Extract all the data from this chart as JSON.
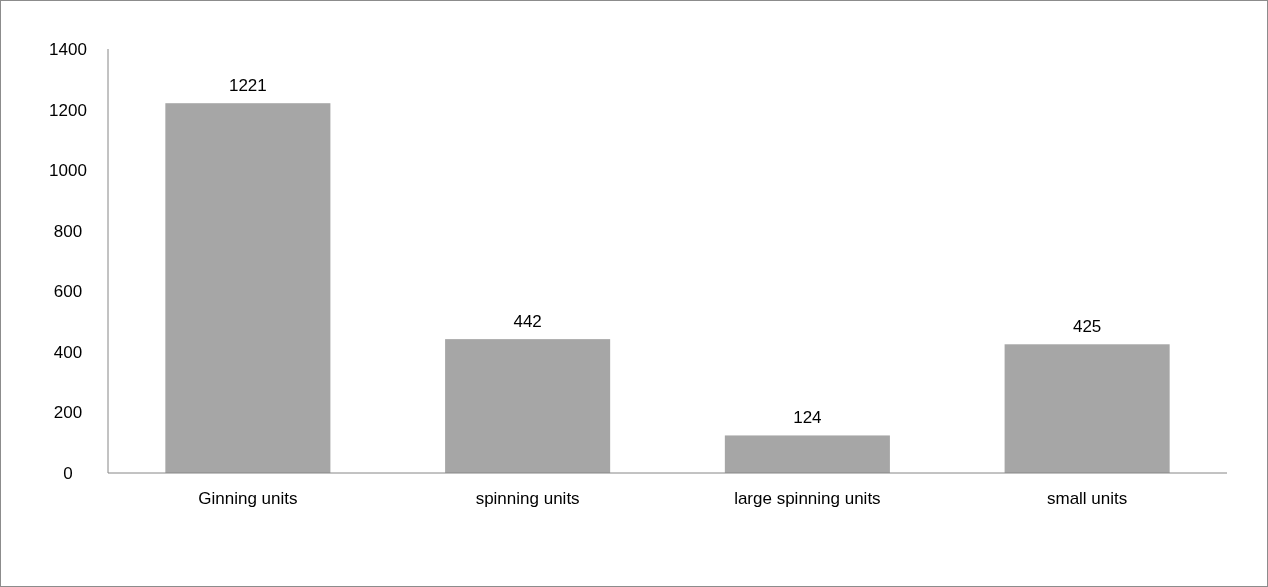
{
  "chart_data": {
    "type": "bar",
    "categories": [
      "Ginning units",
      "spinning units",
      "large spinning units",
      "small units"
    ],
    "values": [
      1221,
      442,
      124,
      425
    ],
    "color": "#a6a6a6",
    "ylim": [
      0,
      1400
    ],
    "yticks": [
      0,
      200,
      400,
      600,
      800,
      1000,
      1200,
      1400
    ],
    "data_labels": true
  }
}
